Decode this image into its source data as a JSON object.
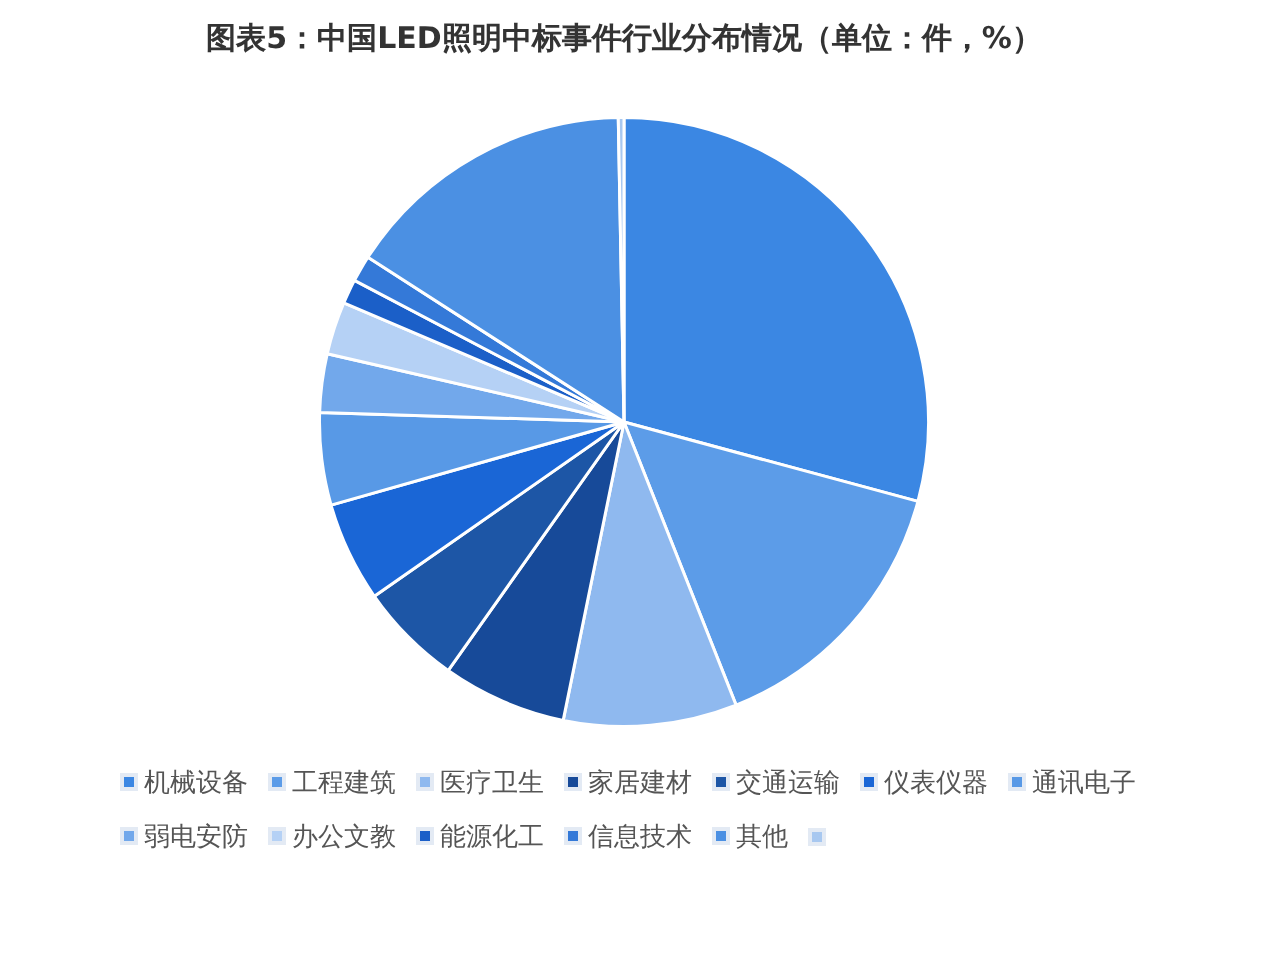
{
  "chart_data": {
    "type": "pie",
    "title": "图表5：中国LED照明中标事件行业分布情况（单位：件，%）",
    "categories": [
      "机械设备",
      "工程建筑",
      "医疗卫生",
      "家居建材",
      "交通运输",
      "仪表仪器",
      "通讯电子",
      "弱电安防",
      "办公文教",
      "能源化工",
      "信息技术",
      "其他",
      null
    ],
    "values": [
      29.2,
      14.8,
      9.2,
      6.6,
      5.5,
      5.3,
      4.9,
      3.1,
      2.8,
      1.3,
      1.4,
      15.6,
      0.3
    ],
    "colors": [
      "#3b87e3",
      "#5c9ce8",
      "#8fb9ef",
      "#174a99",
      "#1d56a6",
      "#1a66d6",
      "#5899e6",
      "#72a8eb",
      "#b5d1f5",
      "#1b5fc8",
      "#3479d8",
      "#4b90e3",
      "#a8c8f0"
    ],
    "legend": "bottom"
  }
}
